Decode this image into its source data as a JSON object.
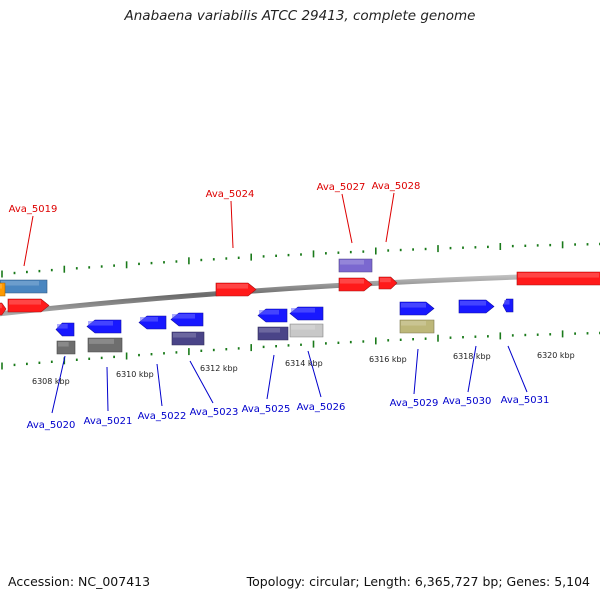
{
  "header": {
    "title": "Anabaena variabilis ATCC 29413, complete genome"
  },
  "footer": {
    "accession": "Accession: NC_007413",
    "stats": "Topology: circular; Length: 6,365,727 bp; Genes: 5,104"
  },
  "colors": {
    "backbone": "#8a8a8a",
    "tick": "#1a7a1a",
    "label_top": "#dd0000",
    "label_bottom": "#0000cc",
    "red": "#ff1a1a",
    "blue": "#1818ff",
    "steelblue": "#4a86c0",
    "orange": "#ff9900",
    "gray": "#6e6e6e",
    "slate": "#4a4488",
    "purple": "#7b68d0",
    "lightgray": "#c8c8c8",
    "khaki": "#bdb779"
  },
  "scale": {
    "labels": [
      "6308 kbp",
      "6310 kbp",
      "6312 kbp",
      "6314 kbp",
      "6316 kbp",
      "6318 kbp",
      "6320 kbp"
    ]
  },
  "gene_labels": {
    "top": [
      "Ava_5019",
      "Ava_5024",
      "Ava_5027",
      "Ava_5028"
    ],
    "bottom": [
      "Ava_5020",
      "Ava_5021",
      "Ava_5022",
      "Ava_5023",
      "Ava_5025",
      "Ava_5026",
      "Ava_5029",
      "Ava_5030",
      "Ava_5031"
    ]
  }
}
